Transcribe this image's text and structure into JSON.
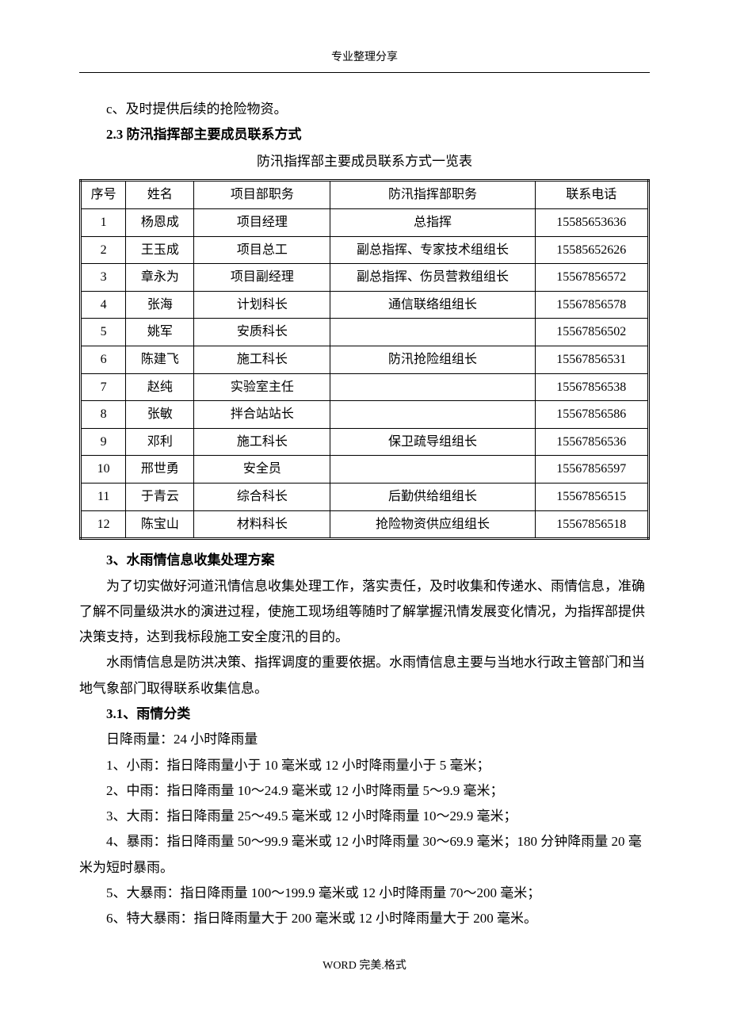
{
  "header": {
    "top_text": "专业整理分享"
  },
  "content": {
    "line_c": "c、及时提供后续的抢险物资。",
    "section_2_3_title": "2.3 防汛指挥部主要成员联系方式",
    "table_caption": "防汛指挥部主要成员联系方式一览表",
    "table": {
      "columns": [
        "序号",
        "姓名",
        "项目部职务",
        "防汛指挥部职务",
        "联系电话"
      ],
      "rows": [
        [
          "1",
          "杨恩成",
          "项目经理",
          "总指挥",
          "15585653636"
        ],
        [
          "2",
          "王玉成",
          "项目总工",
          "副总指挥、专家技术组组长",
          "15585652626"
        ],
        [
          "3",
          "章永为",
          "项目副经理",
          "副总指挥、伤员营救组组长",
          "15567856572"
        ],
        [
          "4",
          "张海",
          "计划科长",
          "通信联络组组长",
          "15567856578"
        ],
        [
          "5",
          "姚军",
          "安质科长",
          "",
          "15567856502"
        ],
        [
          "6",
          "陈建飞",
          "施工科长",
          "防汛抢险组组长",
          "15567856531"
        ],
        [
          "7",
          "赵纯",
          "实验室主任",
          "",
          "15567856538"
        ],
        [
          "8",
          "张敏",
          "拌合站站长",
          "",
          "15567856586"
        ],
        [
          "9",
          "邓利",
          "施工科长",
          "保卫疏导组组长",
          "15567856536"
        ],
        [
          "10",
          "邢世勇",
          "安全员",
          "",
          "15567856597"
        ],
        [
          "11",
          "于青云",
          "综合科长",
          "后勤供给组组长",
          "15567856515"
        ],
        [
          "12",
          "陈宝山",
          "材料科长",
          "抢险物资供应组组长",
          "15567856518"
        ]
      ]
    },
    "section_3_title": "3、水雨情信息收集处理方案",
    "para_3_1": "为了切实做好河道汛情信息收集处理工作，落实责任，及时收集和传递水、雨情信息，准确了解不同量级洪水的演进过程，使施工现场组等随时了解掌握汛情发展变化情况，为指挥部提供决策支持，达到我标段施工安全度汛的目的。",
    "para_3_2": "水雨情信息是防洪决策、指挥调度的重要依据。水雨情信息主要与当地水行政主管部门和当地气象部门取得联系收集信息。",
    "section_3_1_title": "3.1、雨情分类",
    "line_daily": "日降雨量：24 小时降雨量",
    "line_1": "1、小雨：指日降雨量小于 10 毫米或 12 小时降雨量小于 5 毫米；",
    "line_2": "2、中雨：指日降雨量 10～24.9 毫米或 12 小时降雨量 5～9.9 毫米；",
    "line_3": "3、大雨：指日降雨量 25～49.5 毫米或 12 小时降雨量 10～29.9 毫米；",
    "line_4": "4、暴雨：指日降雨量 50～99.9 毫米或 12 小时降雨量 30～69.9 毫米；180 分钟降雨量 20 毫米为短时暴雨。",
    "line_5": "5、大暴雨：指日降雨量 100～199.9 毫米或 12 小时降雨量 70～200 毫米；",
    "line_6": "6、特大暴雨：指日降雨量大于 200 毫米或 12 小时降雨量大于 200 毫米。"
  },
  "footer": {
    "text": "WORD 完美.格式"
  }
}
